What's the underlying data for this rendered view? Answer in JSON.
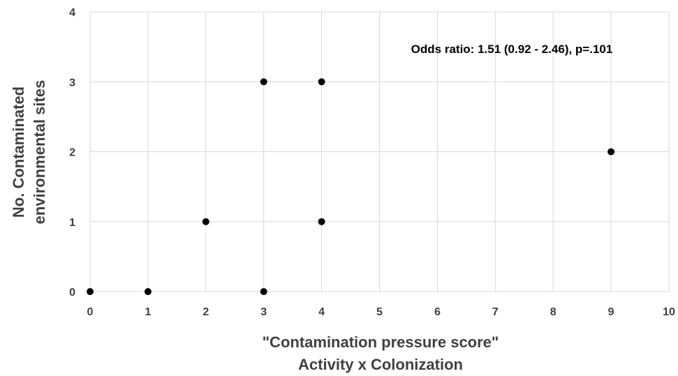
{
  "chart_data": {
    "type": "scatter",
    "title": "",
    "xlabel": "\"Contamination pressure score\"",
    "xlabel_line2": "Activity x Colonization",
    "ylabel": "No. Contaminated",
    "ylabel_line2": "environmental sites",
    "xlim": [
      0,
      10
    ],
    "ylim": [
      0,
      4
    ],
    "x_ticks": [
      "0",
      "1",
      "2",
      "3",
      "4",
      "5",
      "6",
      "7",
      "8",
      "9",
      "10"
    ],
    "y_ticks": [
      "0",
      "1",
      "2",
      "3",
      "4"
    ],
    "grid": true,
    "annotation": "Odds ratio: 1.51 (0.92 - 2.46), p=.101",
    "points": [
      {
        "x": 0,
        "y": 0
      },
      {
        "x": 1,
        "y": 0
      },
      {
        "x": 3,
        "y": 0
      },
      {
        "x": 2,
        "y": 1
      },
      {
        "x": 4,
        "y": 1
      },
      {
        "x": 3,
        "y": 3
      },
      {
        "x": 4,
        "y": 3
      },
      {
        "x": 9,
        "y": 2
      }
    ],
    "colors": {
      "point": "#000000",
      "grid": "#d9d9d9",
      "text": "#404040"
    }
  }
}
